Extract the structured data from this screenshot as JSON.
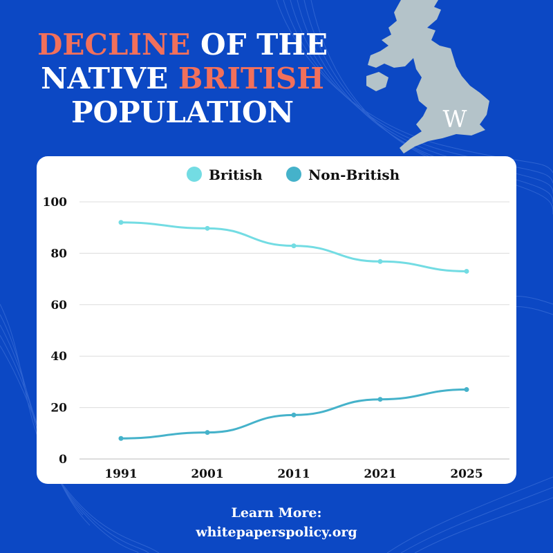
{
  "title": {
    "line1_accent": "DECLINE",
    "line1_rest": " OF THE",
    "line2_start": "NATIVE ",
    "line2_accent": "BRITISH",
    "line3": "POPULATION"
  },
  "logo": {
    "letter": "W",
    "icon": "uk-map-icon"
  },
  "colors": {
    "background": "#0c48c4",
    "accent": "#f2705b",
    "british": "#73dce3",
    "non_british": "#45b2ca",
    "map": "#b4c3c9"
  },
  "footer": {
    "line1": "Learn More:",
    "line2": "whitepaperspolicy.org"
  },
  "chart_data": {
    "type": "line",
    "categories": [
      "1991",
      "2001",
      "2011",
      "2021",
      "2025"
    ],
    "series": [
      {
        "name": "British",
        "values": [
          92,
          89.7,
          82.9,
          76.8,
          73.0
        ],
        "color": "#73dce3"
      },
      {
        "name": "Non-British",
        "values": [
          8,
          10.3,
          17.1,
          23.2,
          27.0
        ],
        "color": "#45b2ca"
      }
    ],
    "ylim": [
      0,
      100
    ],
    "yticks": [
      0,
      20,
      40,
      60,
      80,
      100
    ],
    "grid": true,
    "legend": "top-center"
  }
}
